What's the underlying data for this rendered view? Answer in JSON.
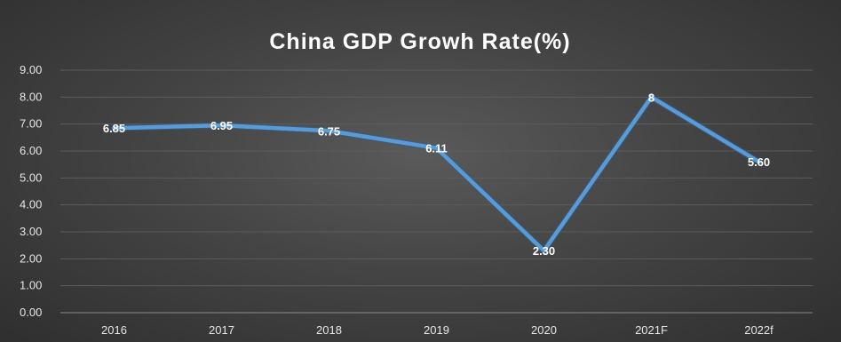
{
  "chart_data": {
    "type": "line",
    "title": "China  GDP  Growh  Rate(%)",
    "xlabel": "",
    "ylabel": "",
    "categories": [
      "2016",
      "2017",
      "2018",
      "2019",
      "2020",
      "2021F",
      "2022f"
    ],
    "series": [
      {
        "values": [
          6.85,
          6.95,
          6.75,
          6.11,
          2.3,
          8,
          5.6
        ],
        "data_labels": [
          "6.85",
          "6.95",
          "6.75",
          "6.11",
          "2.30",
          "8",
          "5.60"
        ],
        "color": "#5b9bd5"
      }
    ],
    "ylim": [
      0,
      9
    ],
    "yticks": [
      "0.00",
      "1.00",
      "2.00",
      "3.00",
      "4.00",
      "5.00",
      "6.00",
      "7.00",
      "8.00",
      "9.00"
    ],
    "grid": true,
    "legend": "none",
    "background": "#404040"
  }
}
